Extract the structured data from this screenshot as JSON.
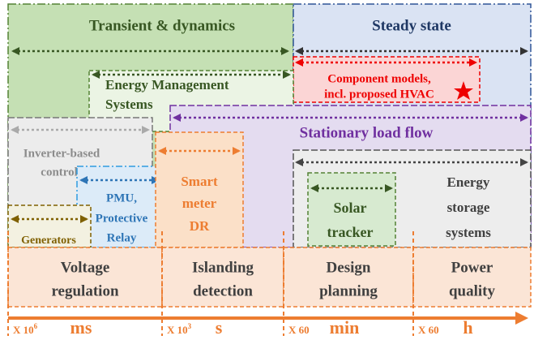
{
  "regions": {
    "transient": "Transient & dynamics",
    "steady": "Steady state",
    "component": [
      "Component models,",
      "incl. proposed HVAC"
    ],
    "ems": [
      "Energy Management",
      "Systems"
    ],
    "load_flow": "Stationary load flow",
    "inverter": [
      "Inverter-based",
      "controls"
    ],
    "storage": [
      "Energy",
      "storage",
      "systems"
    ],
    "solar": [
      "Solar",
      "tracker"
    ],
    "pmu": [
      "PMU,",
      "Protective",
      "Relay"
    ],
    "smart_meter": [
      "Smart",
      "meter",
      "DR"
    ],
    "generators": "Generators"
  },
  "applications": [
    [
      "Voltage",
      "regulation"
    ],
    [
      "Islanding",
      "detection"
    ],
    [
      "Design",
      "planning"
    ],
    [
      "Power",
      "quality"
    ]
  ],
  "timescale": [
    {
      "factor": "X 10",
      "exponent": "6",
      "unit": "ms"
    },
    {
      "factor": "X 10",
      "exponent": "3",
      "unit": "s"
    },
    {
      "factor": "X 60",
      "unit": "min"
    },
    {
      "factor": "X 60",
      "unit": "h"
    }
  ]
}
